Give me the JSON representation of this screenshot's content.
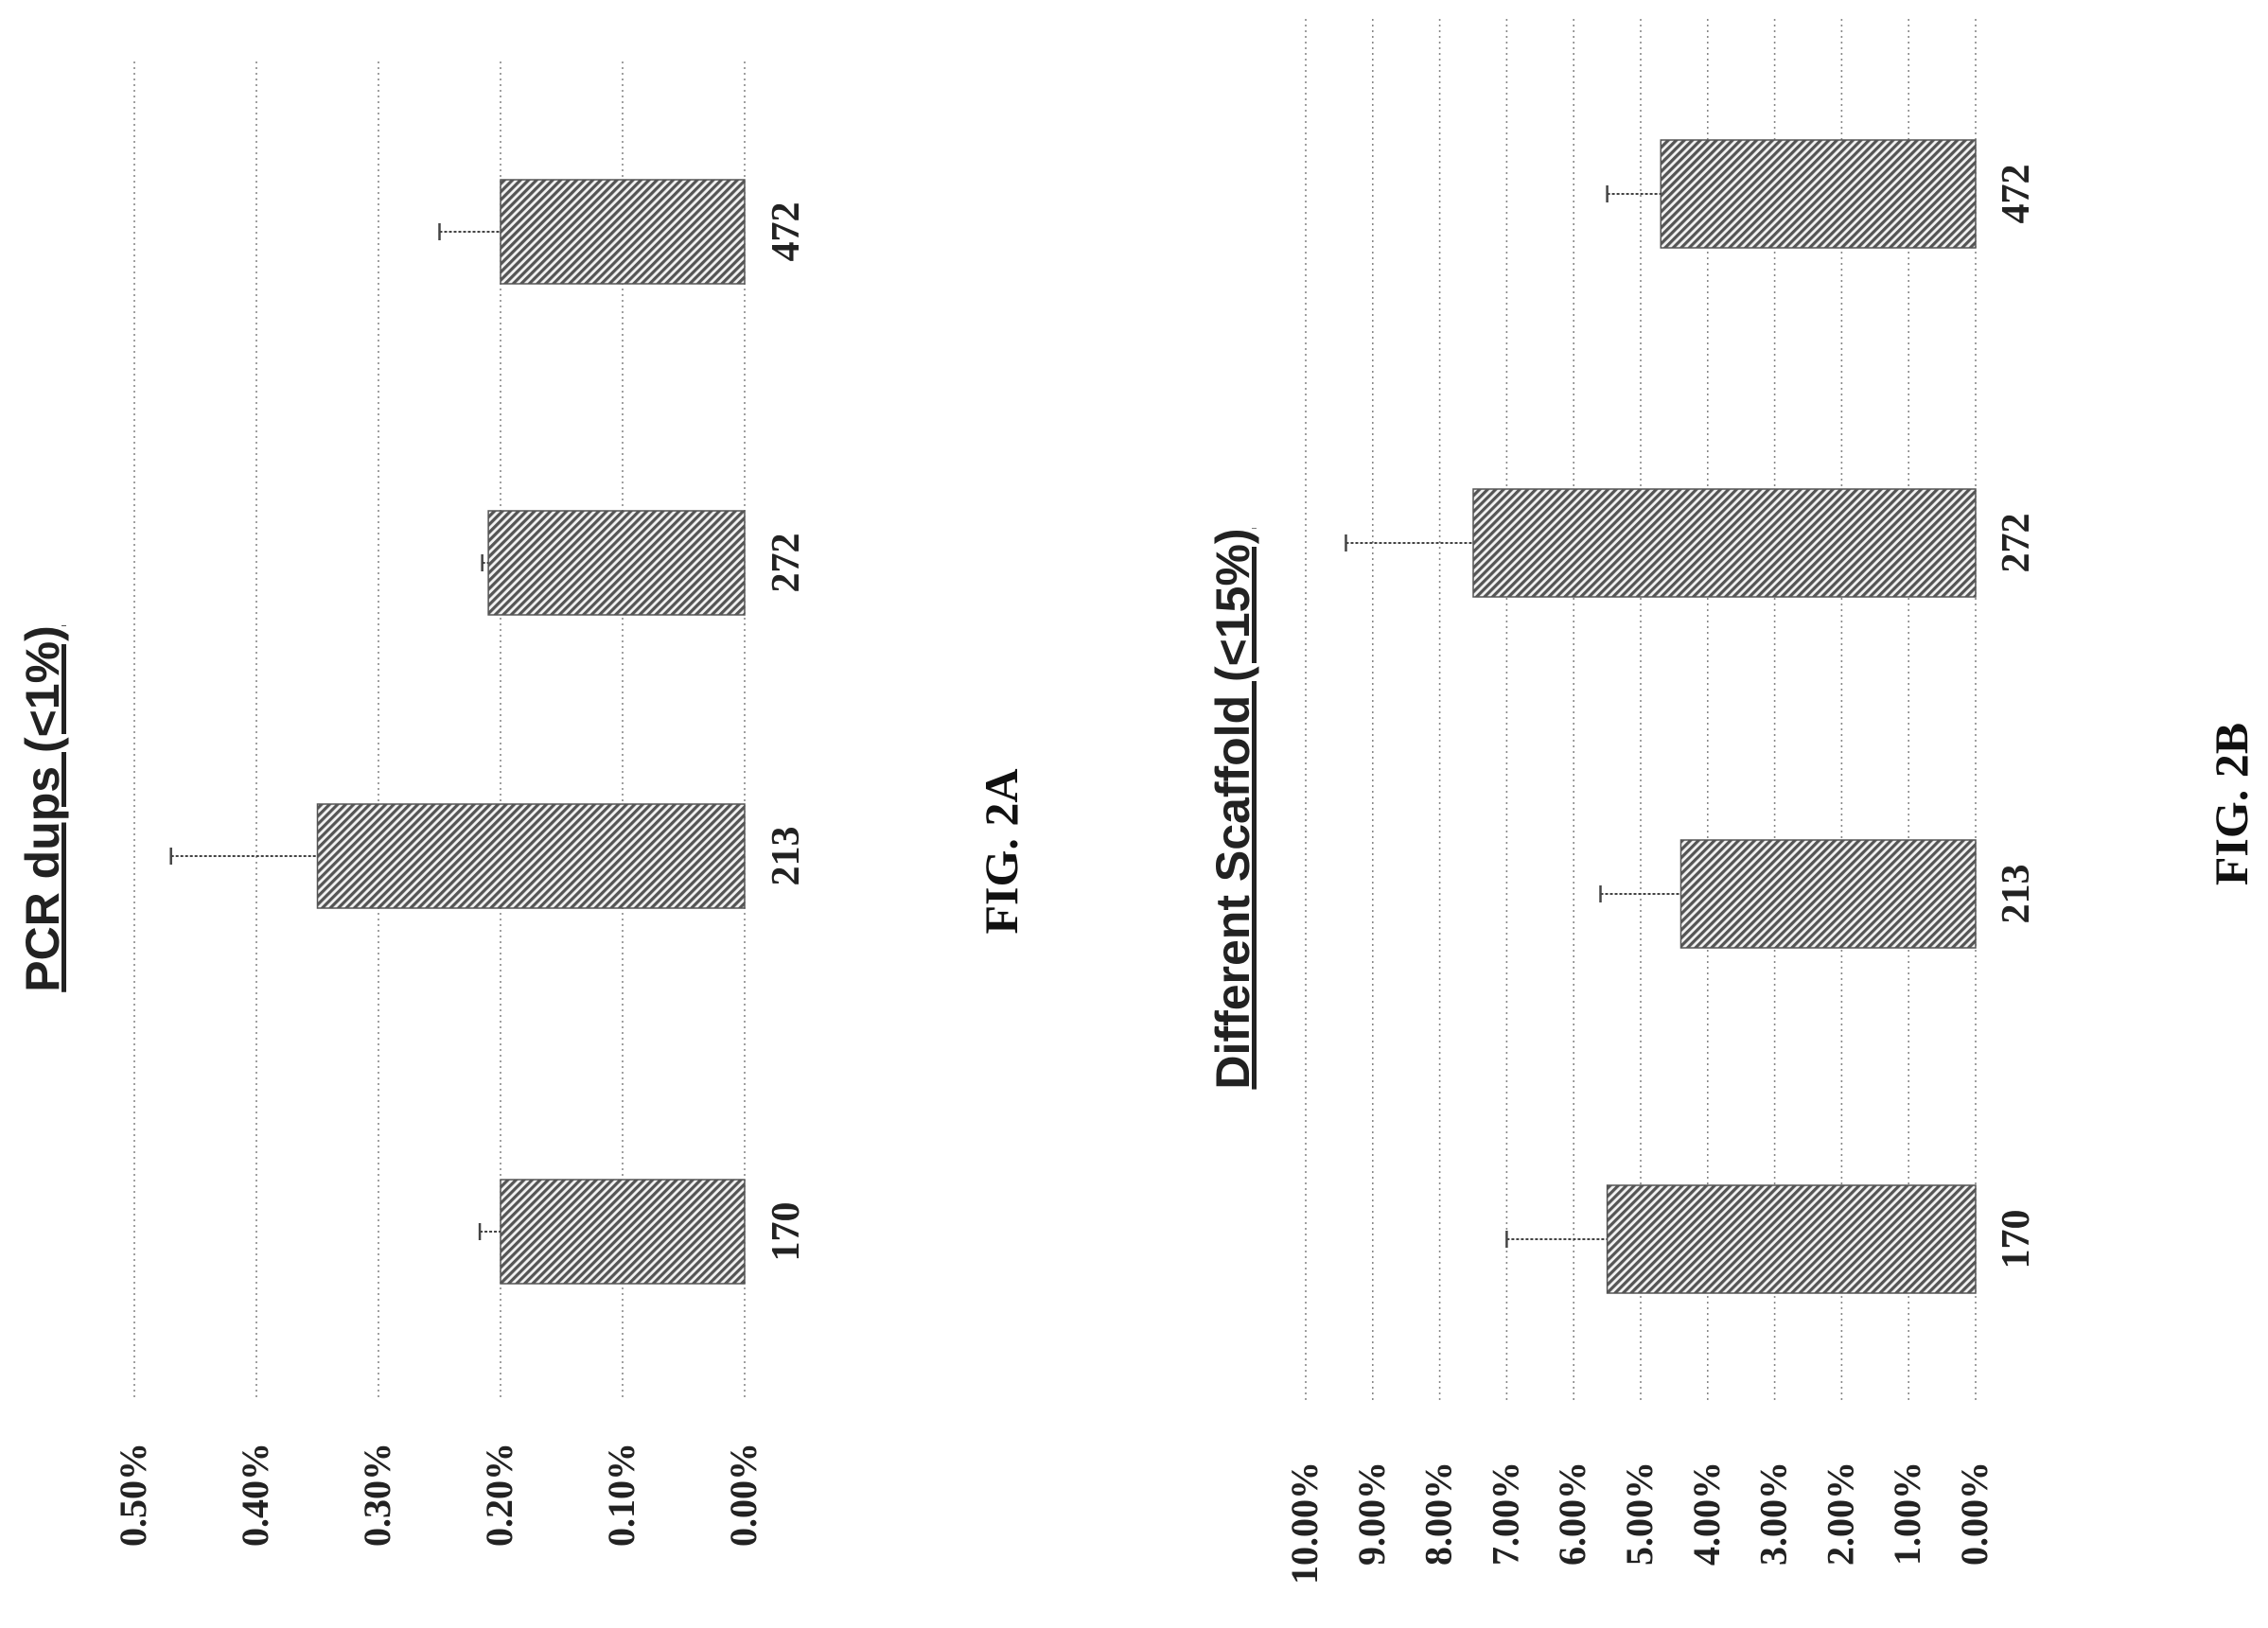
{
  "chart_data": [
    {
      "type": "bar",
      "title": "PCR dups (<1%)",
      "caption": "FIG.  2A",
      "categories": [
        "170",
        "213",
        "272",
        "472"
      ],
      "values": [
        0.002,
        0.0035,
        0.0021,
        0.002
      ],
      "errors": [
        0.00017,
        0.0012,
        5e-05,
        0.0005
      ],
      "ylim": [
        0,
        0.005
      ],
      "yticks": [
        "0.50%",
        "0.40%",
        "0.30%",
        "0.20%",
        "0.10%",
        "0.00%"
      ],
      "grid": true,
      "orientation": "rotated 90 degrees counter-clockwise on page"
    },
    {
      "type": "bar",
      "title": "Different Scaffold (<15%)",
      "caption": "FIG.  2B",
      "categories": [
        "170",
        "213",
        "272",
        "472"
      ],
      "values": [
        0.055,
        0.044,
        0.075,
        0.047
      ],
      "errors": [
        0.015,
        0.012,
        0.019,
        0.008
      ],
      "ylim": [
        0,
        0.1
      ],
      "yticks": [
        "10.00%",
        "9.00%",
        "8.00%",
        "7.00%",
        "6.00%",
        "5.00%",
        "4.00%",
        "3.00%",
        "2.00%",
        "1.00%",
        "0.00%"
      ],
      "grid": true,
      "orientation": "rotated 90 degrees counter-clockwise on page"
    }
  ],
  "colors": {
    "bar": "#555555",
    "hatch": "#f2f2f2",
    "grid": "#888888",
    "error": "#444444"
  }
}
